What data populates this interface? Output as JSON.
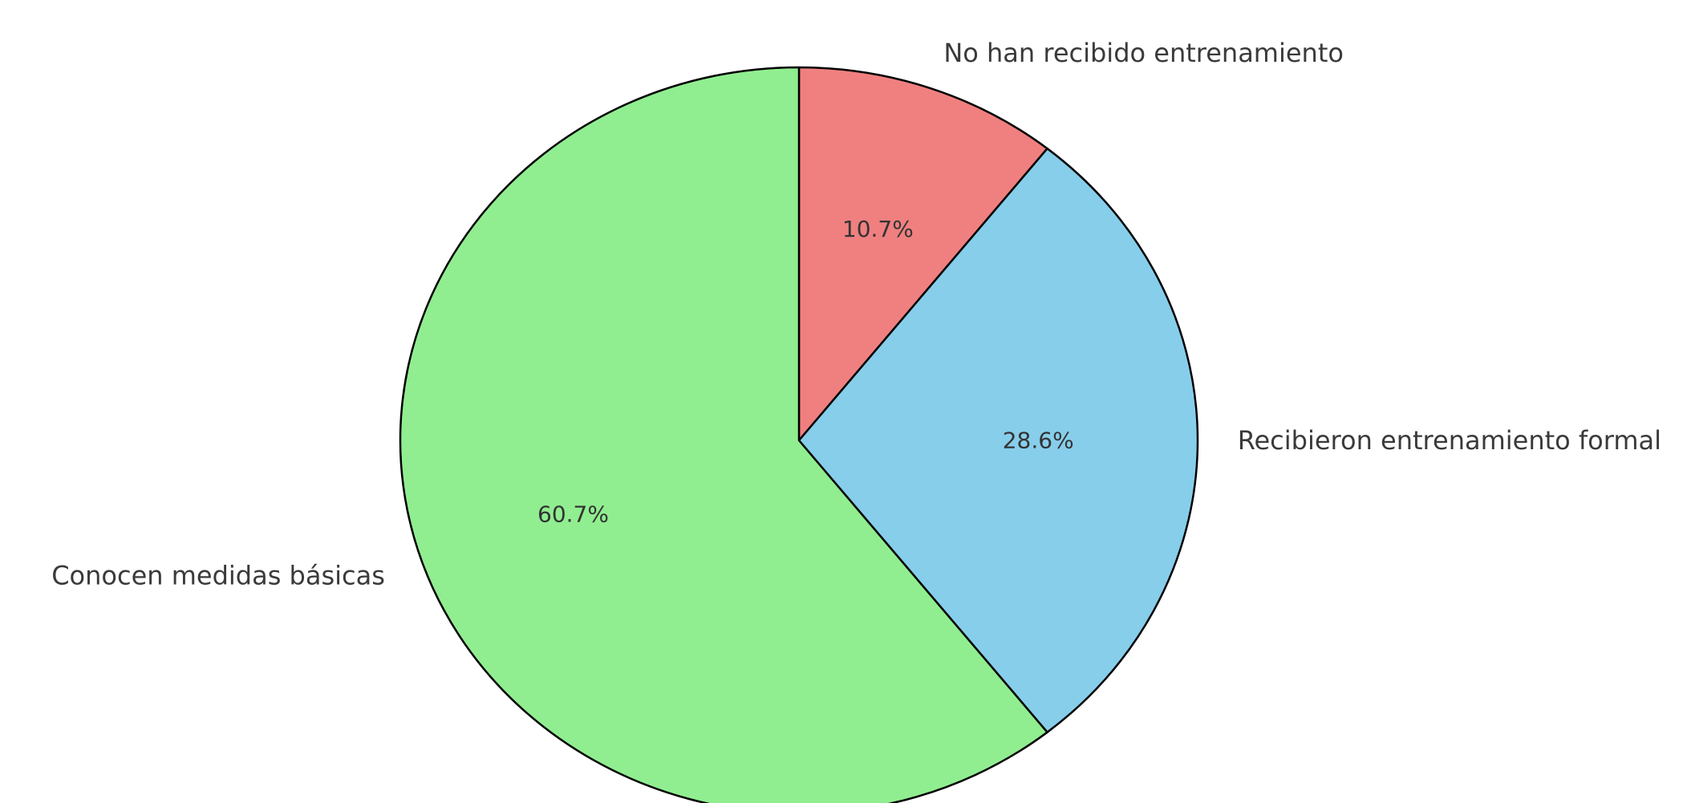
{
  "chart_data": {
    "type": "pie",
    "title": "",
    "start_angle_deg": 90,
    "direction": "clockwise",
    "edge_color": "#000000",
    "slices": [
      {
        "label": "No han recibido entrenamiento",
        "value": 10.7,
        "pct_text": "10.7%",
        "color": "#F08080"
      },
      {
        "label": "Recibieron entrenamiento formal",
        "value": 28.6,
        "pct_text": "28.6%",
        "color": "#87CEEB"
      },
      {
        "label": "Conocen medidas básicas",
        "value": 60.7,
        "pct_text": "60.7%",
        "color": "#90EE90"
      }
    ]
  }
}
